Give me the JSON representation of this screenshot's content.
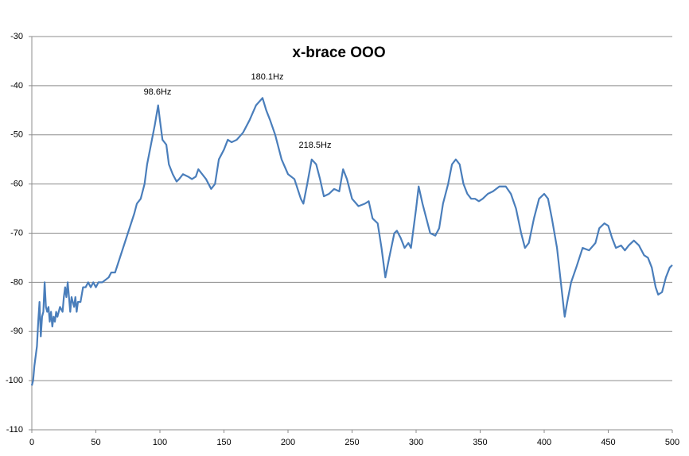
{
  "chart_data": {
    "type": "line",
    "title": "x-brace OOO",
    "annotations": [
      "98.6Hz",
      "180.1Hz",
      "218.5Hz"
    ],
    "color": "#4a7ebb",
    "x": [
      0,
      1,
      2,
      3,
      4,
      5,
      6,
      7,
      8,
      9,
      10,
      11,
      12,
      13,
      14,
      15,
      16,
      17,
      18,
      19,
      20,
      22,
      24,
      25,
      26,
      27,
      28,
      30,
      31,
      32,
      33,
      34,
      35,
      36,
      38,
      40,
      42,
      44,
      46,
      48,
      50,
      52,
      55,
      60,
      62,
      65,
      70,
      75,
      80,
      82,
      85,
      88,
      90,
      93,
      96,
      98.6,
      100,
      102,
      105,
      107,
      110,
      113,
      115,
      118,
      122,
      125,
      128,
      130,
      133,
      136,
      140,
      143,
      146,
      150,
      153,
      156,
      160,
      165,
      170,
      175,
      180.1,
      183,
      186,
      190,
      195,
      200,
      205,
      210,
      212,
      215,
      218.5,
      222,
      225,
      228,
      232,
      236,
      240,
      243,
      246,
      250,
      255,
      260,
      263,
      266,
      270,
      273,
      276,
      279,
      283,
      285,
      288,
      291,
      294,
      296,
      300,
      302,
      305,
      308,
      311,
      315,
      318,
      321,
      325,
      328,
      331,
      334,
      337,
      340,
      343,
      346,
      349,
      352,
      356,
      360,
      365,
      370,
      374,
      378,
      382,
      385,
      388,
      392,
      396,
      400,
      403,
      406,
      410,
      413,
      416,
      418,
      421,
      425,
      430,
      435,
      440,
      443,
      447,
      450,
      453,
      456,
      460,
      463,
      466,
      470,
      474,
      478,
      481,
      484,
      487,
      489,
      492,
      495,
      498,
      500
    ],
    "values": [
      -101,
      -100,
      -97,
      -95,
      -93,
      -88,
      -84,
      -91,
      -87,
      -86,
      -80,
      -85,
      -86,
      -85,
      -88,
      -86,
      -89,
      -87,
      -88,
      -86,
      -87,
      -85,
      -86,
      -83,
      -81,
      -83,
      -80,
      -86,
      -83,
      -84,
      -85,
      -83,
      -86,
      -84,
      -84,
      -81,
      -81,
      -80,
      -81,
      -80,
      -81,
      -80,
      -80,
      -79,
      -78,
      -78,
      -74,
      -70,
      -66,
      -64,
      -63,
      -60,
      -56,
      -52,
      -48,
      -44,
      -47,
      -51,
      -52,
      -56,
      -58,
      -59.5,
      -59,
      -58,
      -58.5,
      -59,
      -58.5,
      -57,
      -58,
      -59,
      -61,
      -60,
      -55,
      -53,
      -51,
      -51.5,
      -51,
      -49.5,
      -47,
      -44,
      -42.5,
      -45,
      -47,
      -50,
      -55,
      -58,
      -59,
      -63,
      -64,
      -60,
      -55,
      -56,
      -59,
      -62.5,
      -62,
      -61,
      -61.5,
      -57,
      -59,
      -63,
      -64.5,
      -64,
      -63.5,
      -67,
      -68,
      -73,
      -79,
      -75,
      -70,
      -69.5,
      -71,
      -73,
      -72,
      -73,
      -65,
      -60.5,
      -64,
      -67,
      -70,
      -70.5,
      -69,
      -64,
      -60,
      -56,
      -55,
      -56,
      -60,
      -62,
      -63,
      -63,
      -63.5,
      -63,
      -62,
      -61.5,
      -60.5,
      -60.5,
      -62,
      -65,
      -70,
      -73,
      -72,
      -67,
      -63,
      -62,
      -63,
      -67,
      -73,
      -80,
      -87,
      -84,
      -80,
      -77,
      -73,
      -73.5,
      -72,
      -69,
      -68,
      -68.5,
      -71,
      -73,
      -72.5,
      -73.5,
      -72.5,
      -71.5,
      -72.5,
      -74.5,
      -75,
      -77,
      -81,
      -82.5,
      -82,
      -79,
      -77,
      -76.5
    ],
    "xlim": [
      0,
      500
    ],
    "xticks": [
      0,
      50,
      100,
      150,
      200,
      250,
      300,
      350,
      400,
      450,
      500
    ],
    "ylim": [
      -110,
      -30
    ],
    "yticks": [
      -110,
      -100,
      -90,
      -80,
      -70,
      -60,
      -50,
      -40,
      -30
    ],
    "grid": true
  }
}
